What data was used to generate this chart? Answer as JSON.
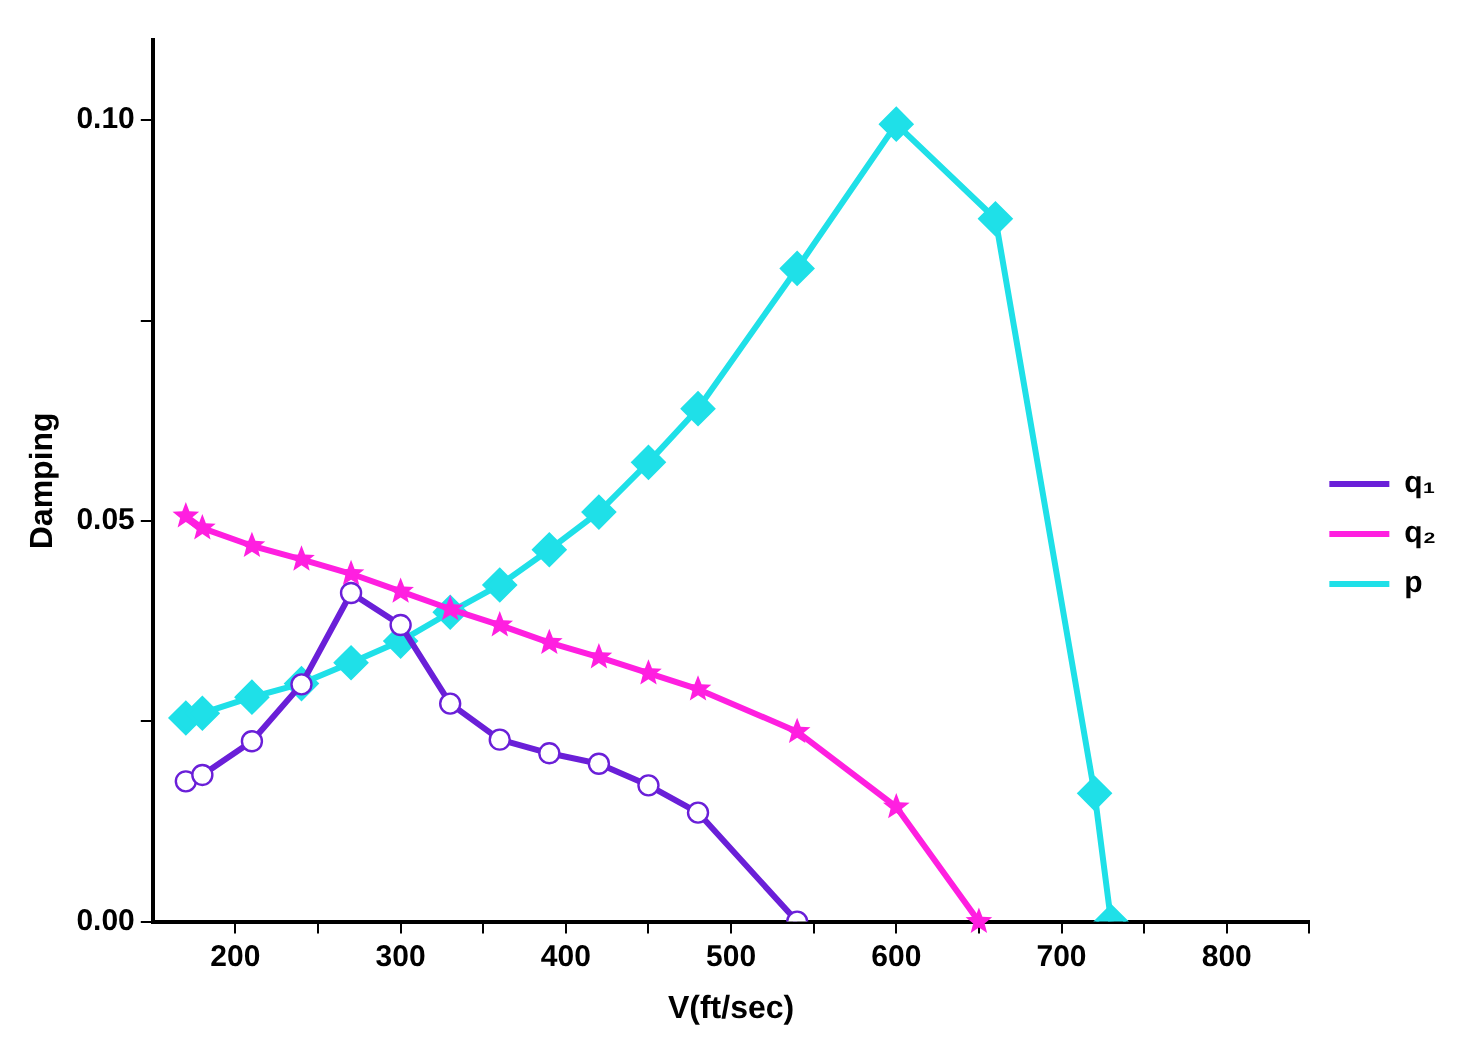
{
  "chart_data": {
    "type": "line",
    "xlabel": "V(ft/sec)",
    "ylabel": "Damping",
    "xlim": [
      150,
      850
    ],
    "ylim": [
      0,
      0.11
    ],
    "xticks": [
      {
        "value": 200,
        "label": "200"
      },
      {
        "value": 250,
        "label": null
      },
      {
        "value": 300,
        "label": "300"
      },
      {
        "value": 350,
        "label": null
      },
      {
        "value": 400,
        "label": "400"
      },
      {
        "value": 450,
        "label": null
      },
      {
        "value": 500,
        "label": "500"
      },
      {
        "value": 550,
        "label": null
      },
      {
        "value": 600,
        "label": "600"
      },
      {
        "value": 650,
        "label": null
      },
      {
        "value": 700,
        "label": "700"
      },
      {
        "value": 750,
        "label": null
      },
      {
        "value": 800,
        "label": "800"
      },
      {
        "value": 850,
        "label": null
      }
    ],
    "yticks": [
      {
        "value": 0,
        "label": "0.00"
      },
      {
        "value": 0.025,
        "label": null
      },
      {
        "value": 0.05,
        "label": "0.05"
      },
      {
        "value": 0.075,
        "label": null
      },
      {
        "value": 0.1,
        "label": "0.10"
      }
    ],
    "grid": false,
    "legend": "right",
    "line_style": "solid",
    "series": [
      {
        "name": "q₁",
        "color": "#6a1fd8",
        "marker": "circle",
        "x": [
          170,
          180,
          210,
          240,
          270,
          300,
          330,
          360,
          390,
          420,
          450,
          480,
          540
        ],
        "values": [
          0.0175,
          0.0183,
          0.0225,
          0.0296,
          0.041,
          0.037,
          0.0272,
          0.0227,
          0.021,
          0.0197,
          0.017,
          0.0136,
          0
        ]
      },
      {
        "name": "q₂",
        "color": "#ff1fe0",
        "marker": "star",
        "x": [
          170,
          180,
          210,
          240,
          270,
          300,
          330,
          360,
          390,
          420,
          450,
          480,
          540,
          600,
          650
        ],
        "values": [
          0.0506,
          0.0491,
          0.0469,
          0.0452,
          0.0434,
          0.0412,
          0.039,
          0.037,
          0.0348,
          0.033,
          0.031,
          0.029,
          0.0237,
          0.0143,
          0
        ]
      },
      {
        "name": "p",
        "color": "#1fe0e8",
        "marker": "diamond",
        "x": [
          170,
          180,
          210,
          240,
          270,
          300,
          330,
          360,
          390,
          420,
          450,
          480,
          540,
          600,
          660,
          720,
          730
        ],
        "values": [
          0.0254,
          0.026,
          0.028,
          0.0297,
          0.0323,
          0.035,
          0.0386,
          0.042,
          0.0464,
          0.0511,
          0.0573,
          0.064,
          0.0815,
          0.0995,
          0.0877,
          0.016,
          0
        ]
      }
    ]
  }
}
